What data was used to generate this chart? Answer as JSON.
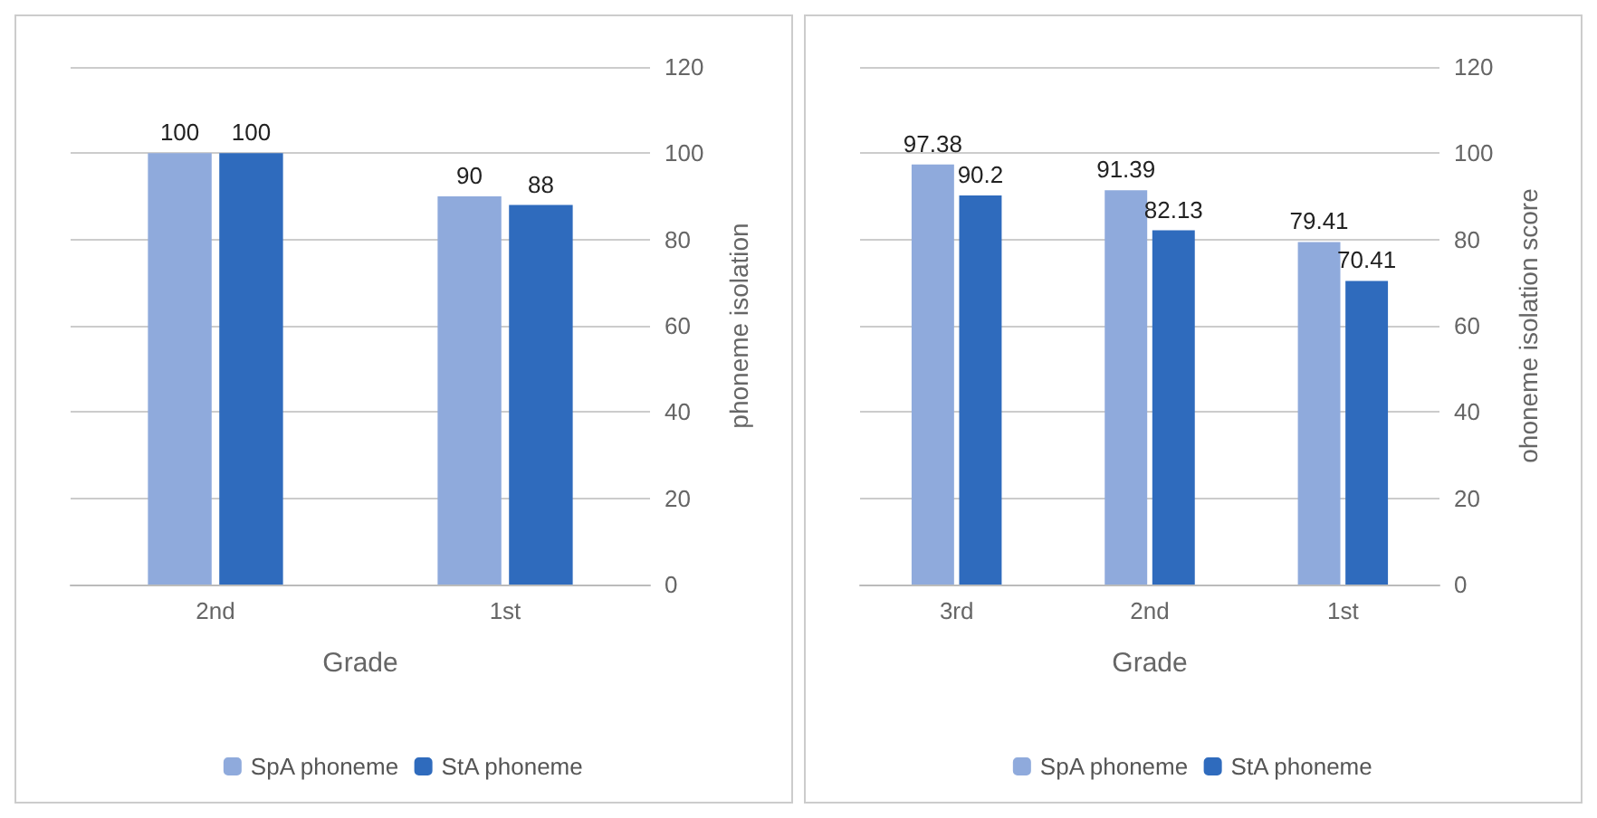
{
  "chart_data": [
    {
      "type": "bar",
      "categories": [
        "2nd",
        "1st"
      ],
      "xlabel": "Grade",
      "ylabel": "phoneme isolation",
      "ylim": [
        0,
        120
      ],
      "yticks": [
        0,
        20,
        40,
        60,
        80,
        100,
        120
      ],
      "grid": "y",
      "legend": "bottom",
      "data_labels": true,
      "series": [
        {
          "name": "SpA phoneme",
          "color": "#8faadc",
          "values": [
            100,
            90
          ]
        },
        {
          "name": "StA phoneme",
          "color": "#2f6bbd",
          "values": [
            100,
            88
          ]
        }
      ]
    },
    {
      "type": "bar",
      "categories": [
        "3rd",
        "2nd",
        "1st"
      ],
      "xlabel": "Grade",
      "ylabel": "ohoneme isolation score",
      "ylim": [
        0,
        120
      ],
      "yticks": [
        0,
        20,
        40,
        60,
        80,
        100,
        120
      ],
      "grid": "y",
      "legend": "bottom",
      "data_labels": true,
      "series": [
        {
          "name": "SpA phoneme",
          "color": "#8faadc",
          "values": [
            97.38,
            91.39,
            79.41
          ]
        },
        {
          "name": "StA phoneme",
          "color": "#2f6bbd",
          "values": [
            90.2,
            82.13,
            70.41
          ]
        }
      ]
    }
  ]
}
